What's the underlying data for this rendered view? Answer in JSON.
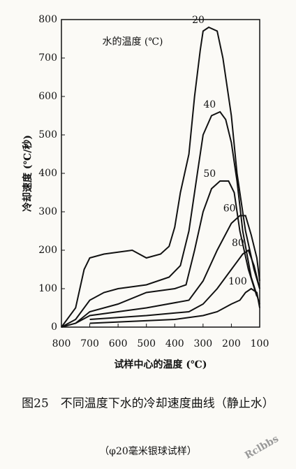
{
  "chart_data": {
    "type": "line",
    "ylabel": "冷却速度 (℃/秒)",
    "xlabel": "试样中心的温度 (℃)",
    "annotation": "水的温度 (℃)",
    "caption": "图25　不同温度下水的冷却速度曲线（静止水）",
    "subcaption": "（φ20毫米银球试样）",
    "watermark": "Rclbbs",
    "xlim": [
      800,
      100
    ],
    "xticks": [
      800,
      700,
      600,
      500,
      400,
      300,
      200,
      100
    ],
    "ylim": [
      0,
      800
    ],
    "yticks": [
      0,
      100,
      200,
      300,
      400,
      500,
      600,
      700,
      800
    ],
    "series": [
      {
        "name": "20",
        "color": "#111111",
        "x": [
          800,
          750,
          720,
          700,
          650,
          600,
          550,
          500,
          450,
          420,
          400,
          380,
          350,
          330,
          310,
          300,
          280,
          250,
          230,
          200,
          180,
          150,
          120,
          100
        ],
        "values": [
          0,
          50,
          150,
          180,
          190,
          195,
          200,
          180,
          190,
          210,
          260,
          350,
          450,
          600,
          720,
          770,
          780,
          770,
          700,
          550,
          400,
          250,
          150,
          100
        ]
      },
      {
        "name": "40",
        "color": "#111111",
        "x": [
          800,
          750,
          700,
          650,
          600,
          500,
          420,
          380,
          350,
          320,
          300,
          270,
          240,
          220,
          200,
          180,
          160,
          130,
          100
        ],
        "values": [
          0,
          20,
          70,
          90,
          100,
          110,
          130,
          160,
          250,
          400,
          500,
          550,
          560,
          540,
          480,
          380,
          250,
          130,
          60
        ]
      },
      {
        "name": "50",
        "color": "#111111",
        "x": [
          800,
          750,
          700,
          600,
          500,
          400,
          360,
          330,
          300,
          270,
          240,
          210,
          190,
          170,
          140,
          110
        ],
        "values": [
          0,
          10,
          40,
          60,
          90,
          100,
          110,
          200,
          300,
          360,
          380,
          380,
          350,
          250,
          150,
          80
        ]
      },
      {
        "name": "60",
        "color": "#111111",
        "x": [
          750,
          700,
          500,
          350,
          300,
          250,
          200,
          170,
          150,
          130,
          110,
          100
        ],
        "values": [
          10,
          30,
          50,
          70,
          120,
          200,
          270,
          290,
          290,
          240,
          180,
          120
        ]
      },
      {
        "name": "80",
        "color": "#111111",
        "x": [
          700,
          500,
          350,
          300,
          250,
          200,
          160,
          140,
          120,
          100
        ],
        "values": [
          20,
          30,
          40,
          60,
          100,
          150,
          190,
          200,
          160,
          100
        ]
      },
      {
        "name": "100",
        "color": "#111111",
        "x": [
          700,
          400,
          300,
          250,
          200,
          170,
          150,
          130,
          110,
          100
        ],
        "values": [
          10,
          20,
          30,
          40,
          60,
          70,
          90,
          100,
          90,
          50
        ]
      }
    ]
  }
}
